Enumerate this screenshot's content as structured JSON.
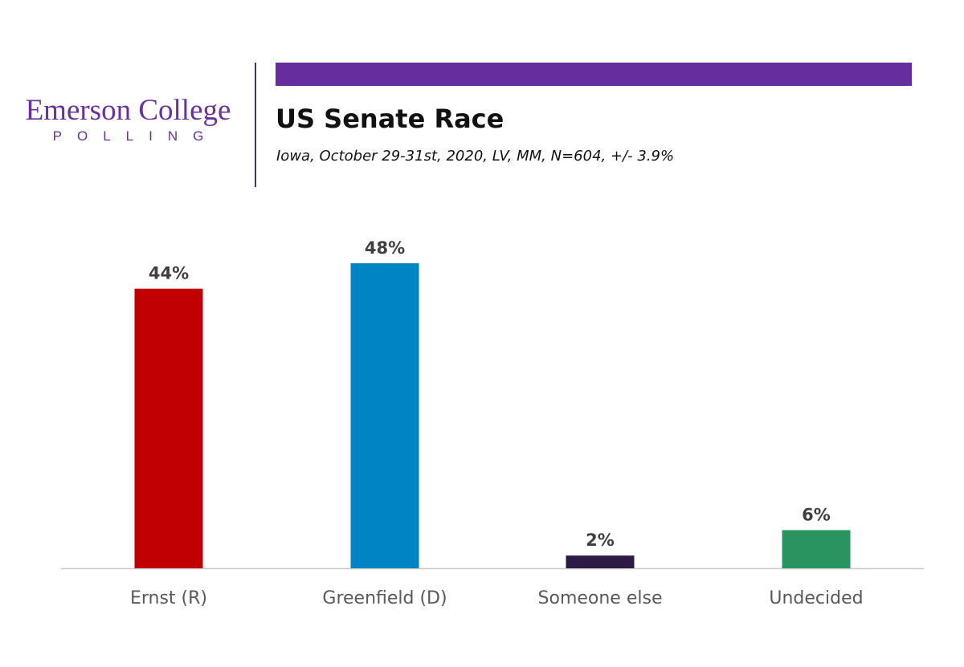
{
  "header": {
    "logo_name": "Emerson College",
    "logo_tagline": "POLLING",
    "title": "US Senate Race",
    "subtitle": "Iowa, October 29-31st, 2020, LV, MM,  N=604, +/- 3.9%"
  },
  "colors": {
    "brand": "#6a2fa0",
    "accent_bar": "#652d9e",
    "divider": "#2f3e66"
  },
  "chart_data": {
    "type": "bar",
    "categories": [
      "Ernst (R)",
      "Greenfield (D)",
      "Someone else",
      "Undecided"
    ],
    "values": [
      44,
      48,
      2,
      6
    ],
    "data_labels": [
      "44%",
      "48%",
      "2%",
      "6%"
    ],
    "colors": [
      "#c00000",
      "#0084c4",
      "#2d1a45",
      "#2a9461"
    ],
    "ylim": [
      0,
      48
    ],
    "grid": false,
    "legend": "none"
  }
}
